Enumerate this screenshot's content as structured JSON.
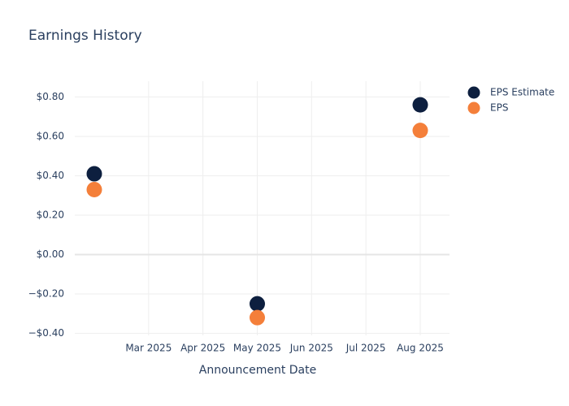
{
  "chart_data": {
    "type": "scatter",
    "title": "Earnings History",
    "x_label": "Announcement Date",
    "x": [
      "2025-02",
      "2025-05",
      "2025-08"
    ],
    "series": [
      {
        "name": "EPS Estimate",
        "color": "#0d1f3f",
        "values": [
          0.41,
          -0.25,
          0.76
        ]
      },
      {
        "name": "EPS",
        "color": "#f47f3a",
        "values": [
          0.33,
          -0.32,
          0.63
        ]
      }
    ],
    "xlim": [
      "2025-02",
      "2025-08"
    ],
    "xticks": [
      {
        "value": "2025-03",
        "label": "Mar 2025"
      },
      {
        "value": "2025-04",
        "label": "Apr 2025"
      },
      {
        "value": "2025-05",
        "label": "May 2025"
      },
      {
        "value": "2025-06",
        "label": "Jun 2025"
      },
      {
        "value": "2025-07",
        "label": "Jul 2025"
      },
      {
        "value": "2025-08",
        "label": "Aug 2025"
      }
    ],
    "ylim": [
      -0.41,
      0.88
    ],
    "yticks": [
      {
        "value": -0.4,
        "label": "−$0.40"
      },
      {
        "value": -0.2,
        "label": "−$0.20"
      },
      {
        "value": 0,
        "label": "$0.00"
      },
      {
        "value": 0.2,
        "label": "$0.20"
      },
      {
        "value": 0.4,
        "label": "$0.40"
      },
      {
        "value": 0.6,
        "label": "$0.60"
      },
      {
        "value": 0.8,
        "label": "$0.80"
      }
    ],
    "grid": true,
    "legend": "top-right"
  }
}
